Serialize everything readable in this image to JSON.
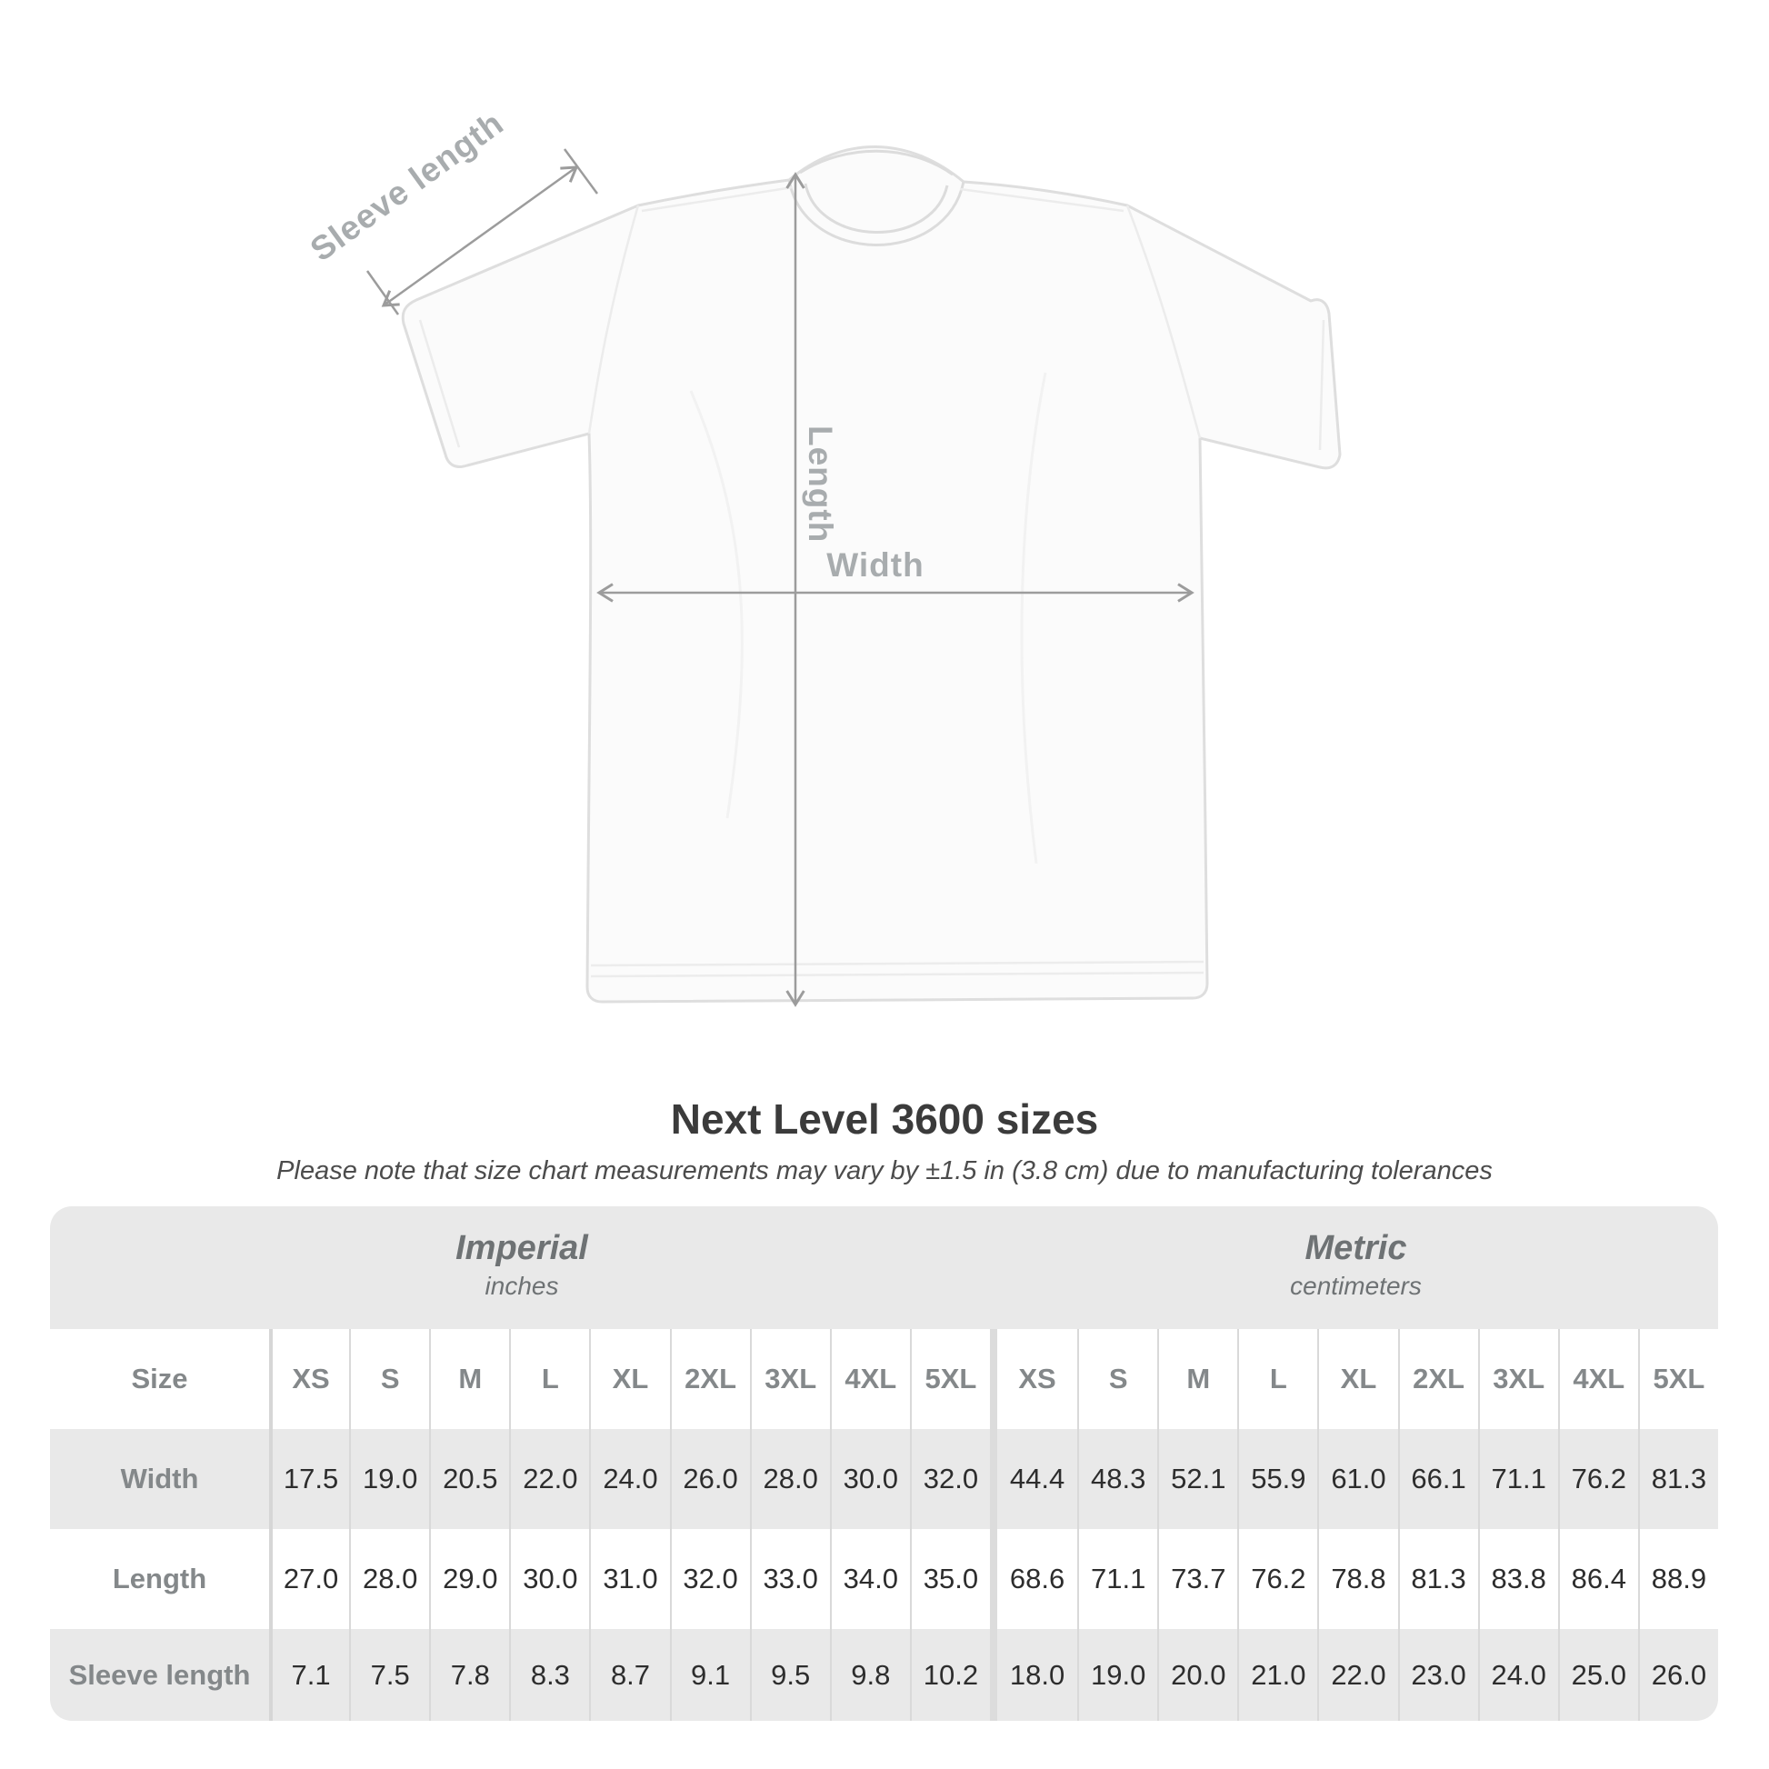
{
  "title": "Next Level 3600 sizes",
  "subtitle": "Please note that size chart measurements may vary by ±1.5 in (3.8 cm) due to manufacturing tolerances",
  "diagram": {
    "sleeve_label": "Sleeve length",
    "length_label": "Length",
    "width_label": "Width"
  },
  "table": {
    "imperial": {
      "title": "Imperial",
      "unit": "inches"
    },
    "metric": {
      "title": "Metric",
      "unit": "centimeters"
    },
    "size_label": "Size",
    "sizes": [
      "XS",
      "S",
      "M",
      "L",
      "XL",
      "2XL",
      "3XL",
      "4XL",
      "5XL"
    ],
    "rows": [
      {
        "label": "Width",
        "imperial": [
          "17.5",
          "19.0",
          "20.5",
          "22.0",
          "24.0",
          "26.0",
          "28.0",
          "30.0",
          "32.0"
        ],
        "metric": [
          "44.4",
          "48.3",
          "52.1",
          "55.9",
          "61.0",
          "66.1",
          "71.1",
          "76.2",
          "81.3"
        ]
      },
      {
        "label": "Length",
        "imperial": [
          "27.0",
          "28.0",
          "29.0",
          "30.0",
          "31.0",
          "32.0",
          "33.0",
          "34.0",
          "35.0"
        ],
        "metric": [
          "68.6",
          "71.1",
          "73.7",
          "76.2",
          "78.8",
          "81.3",
          "83.8",
          "86.4",
          "88.9"
        ]
      },
      {
        "label": "Sleeve length",
        "imperial": [
          "7.1",
          "7.5",
          "7.8",
          "8.3",
          "8.7",
          "9.1",
          "9.5",
          "9.8",
          "10.2"
        ],
        "metric": [
          "18.0",
          "19.0",
          "20.0",
          "21.0",
          "22.0",
          "23.0",
          "24.0",
          "25.0",
          "26.0"
        ]
      }
    ]
  },
  "colors": {
    "page_bg": "#ffffff",
    "table_bg": "#e9e9e9",
    "row_white": "#ffffff",
    "separator": "#d9d9d9",
    "label_text": "#84888a",
    "value_text": "#2d2d2d",
    "units_text": "#6e7274",
    "title_text": "#3b3b3b",
    "dimension_line": "#9c9c9c",
    "diagram_label": "#a8acae"
  }
}
